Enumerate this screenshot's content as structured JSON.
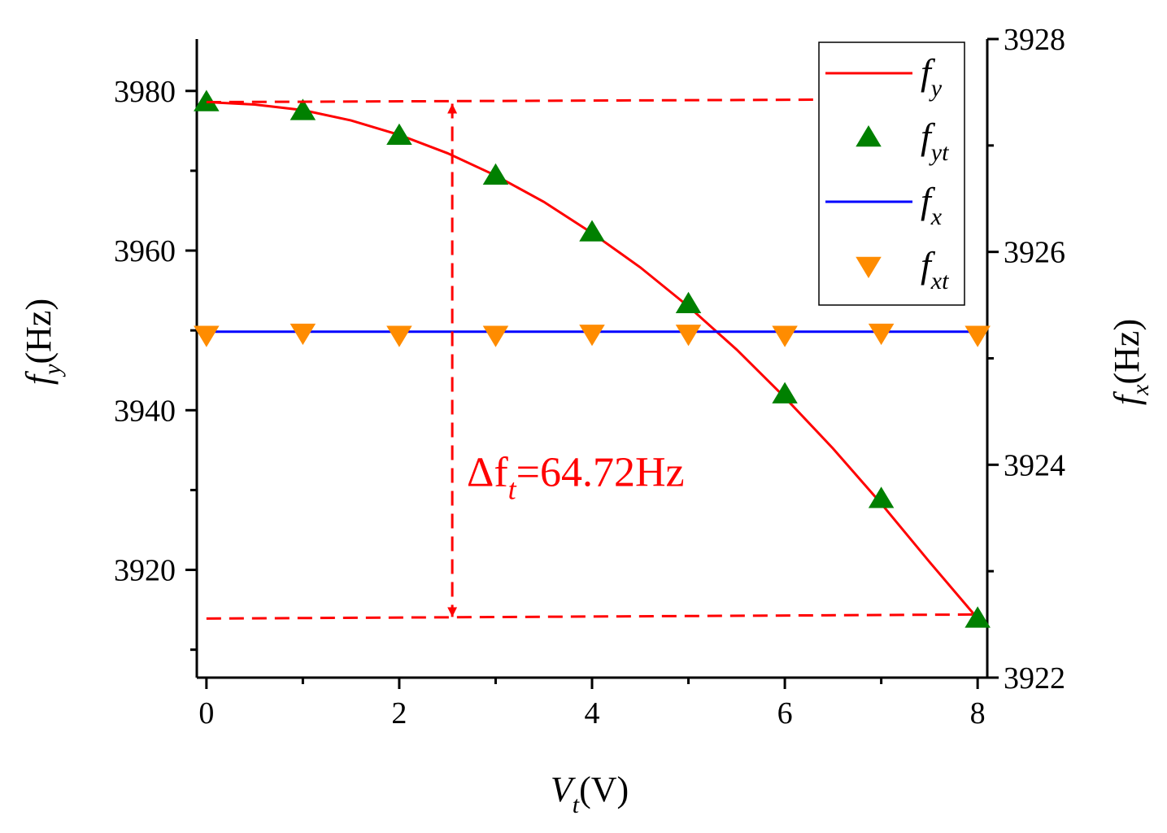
{
  "chart_data": {
    "type": "line",
    "title": "",
    "xlabel": {
      "main": "V",
      "sub": "t",
      "unit": "(V)"
    },
    "ylabel_left": {
      "main": "f",
      "sub": "y",
      "unit": "(Hz)"
    },
    "ylabel_right": {
      "main": "f",
      "sub": "x",
      "unit": "(Hz)"
    },
    "xlim": [
      -0.1,
      8.1
    ],
    "ylim_left": [
      3906.5,
      3986.5
    ],
    "ylim_right": [
      3922,
      3928
    ],
    "x_ticks": [
      0,
      2,
      4,
      6,
      8
    ],
    "x_tick_labels": [
      "0",
      "2",
      "4",
      "6",
      "8"
    ],
    "x_minor_ticks": [
      1,
      3,
      5,
      7
    ],
    "y_left_ticks": [
      3920,
      3940,
      3960,
      3980
    ],
    "y_left_tick_labels": [
      "3920",
      "3940",
      "3960",
      "3980"
    ],
    "y_left_minor_ticks": [
      3910,
      3930,
      3950,
      3970
    ],
    "y_right_ticks": [
      3922,
      3924,
      3926,
      3928
    ],
    "y_right_tick_labels": [
      "3922",
      "3924",
      "3926",
      "3928"
    ],
    "y_right_minor_ticks": [
      3923,
      3925,
      3927
    ],
    "grid": false,
    "legend_position": "top-right",
    "series": [
      {
        "name": "f",
        "name_sub": "y",
        "kind": "line",
        "axis": "left",
        "color": "#ff0000",
        "x": [
          0,
          0.5,
          1,
          1.5,
          2,
          2.5,
          3,
          3.5,
          4,
          4.5,
          5,
          5.5,
          6,
          6.5,
          7,
          7.5,
          8
        ],
        "y": [
          3978.6,
          3978.3,
          3977.6,
          3976.3,
          3974.5,
          3972.2,
          3969.4,
          3966.1,
          3962.2,
          3957.9,
          3953.0,
          3947.6,
          3941.6,
          3935.2,
          3928.3,
          3921.0,
          3913.9
        ]
      },
      {
        "name": "f",
        "name_sub": "yt",
        "kind": "marker-up",
        "axis": "left",
        "color": "#008000",
        "x": [
          0,
          1,
          2,
          3,
          4,
          5,
          6,
          7,
          8
        ],
        "y": [
          3978.6,
          3977.5,
          3974.4,
          3969.4,
          3962.3,
          3953.3,
          3942.0,
          3928.9,
          3913.9
        ]
      },
      {
        "name": "f",
        "name_sub": "x",
        "kind": "line",
        "axis": "right",
        "color": "#0000ff",
        "x": [
          0,
          8
        ],
        "y": [
          3925.25,
          3925.25
        ]
      },
      {
        "name": "f",
        "name_sub": "xt",
        "kind": "marker-down",
        "axis": "right",
        "color": "#ff8c00",
        "x": [
          0,
          1,
          2,
          3,
          4,
          5,
          6,
          7,
          8
        ],
        "y": [
          3925.22,
          3925.24,
          3925.22,
          3925.22,
          3925.23,
          3925.23,
          3925.22,
          3925.24,
          3925.22
        ]
      }
    ],
    "annotation": {
      "text_main": "Δf",
      "text_sub": "t",
      "text_rest": "=64.72Hz",
      "color": "#ff0000",
      "upper_dashed_y": 3978.6,
      "lower_dashed_y": 3913.9,
      "arrow_x": 2.55,
      "label_x": 2.7,
      "label_y": 3930.5
    }
  }
}
